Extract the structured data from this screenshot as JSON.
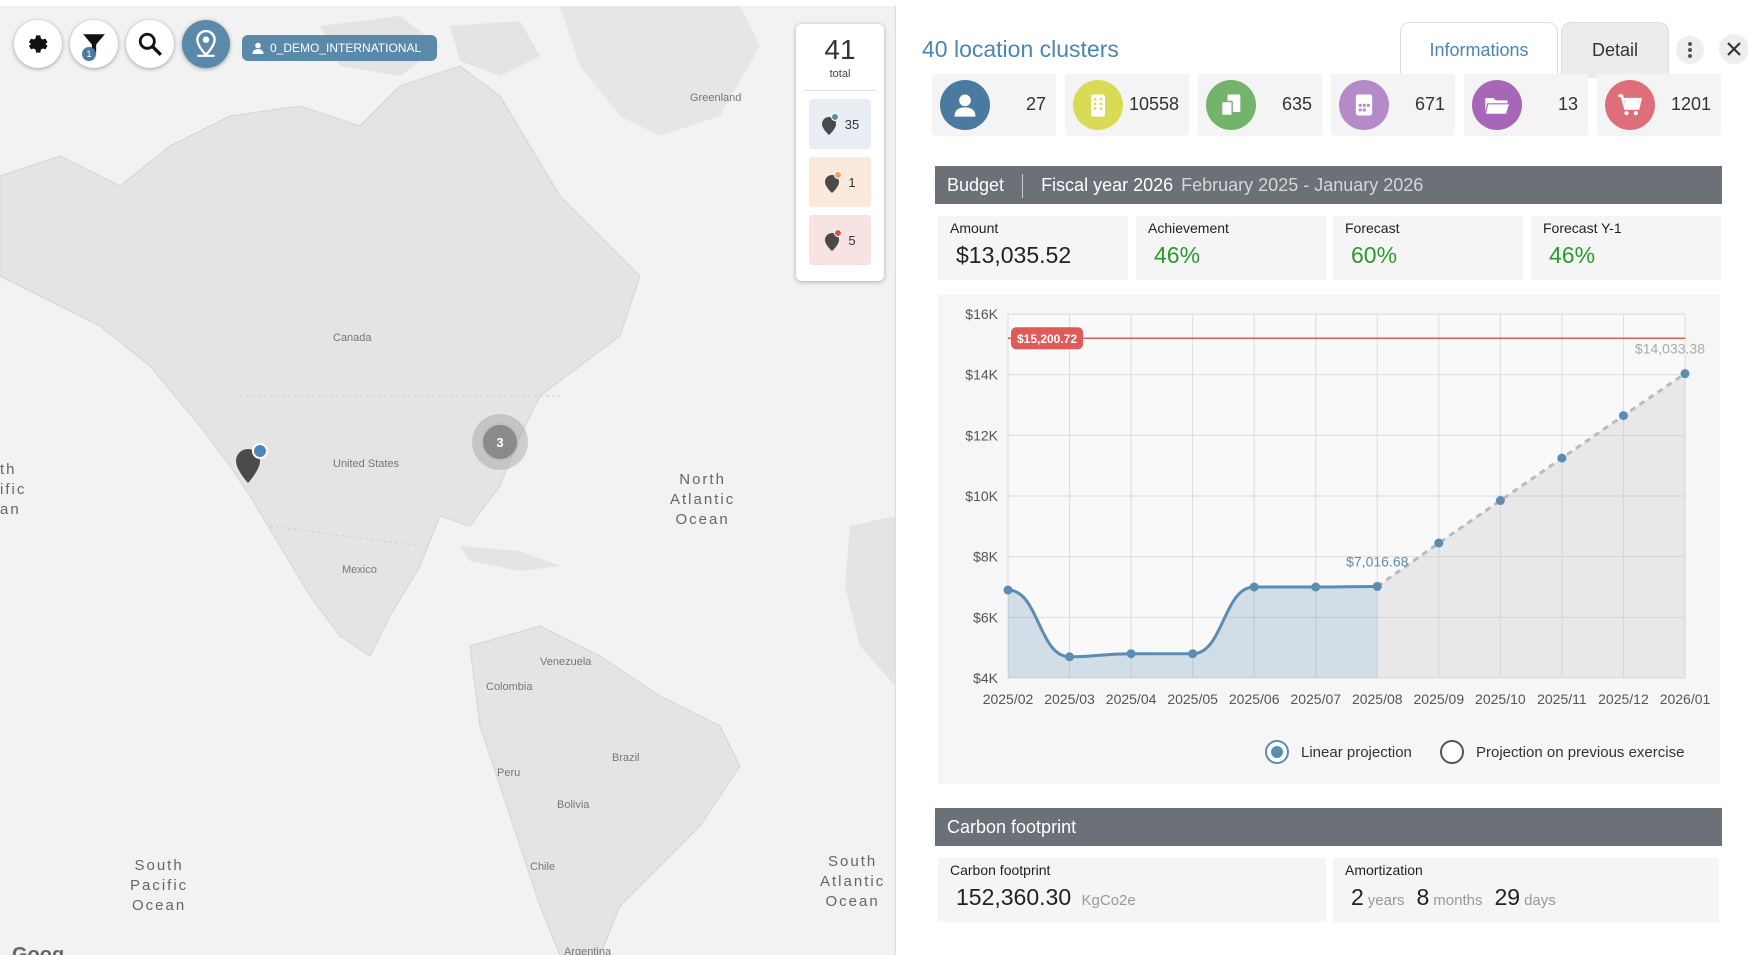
{
  "map": {
    "org_chip": "0_DEMO_INTERNATIONAL",
    "filter_badge": "1",
    "cluster_count": "3",
    "labels": {
      "greenland": "Greenland",
      "canada": "Canada",
      "united_states": "United States",
      "mexico": "Mexico",
      "venezuela": "Venezuela",
      "colombia": "Colombia",
      "brazil": "Brazil",
      "peru": "Peru",
      "bolivia": "Bolivia",
      "chile": "Chile",
      "argentina": "Argentina"
    },
    "oceans": {
      "north_atlantic": [
        "North",
        "Atlantic",
        "Ocean"
      ],
      "south_pacific": [
        "South",
        "Pacific",
        "Ocean"
      ],
      "south_atlantic": [
        "South",
        "Atlantic",
        "Ocean"
      ],
      "pacific_partial": [
        "th",
        "ific",
        "an"
      ]
    },
    "logo": "Goog"
  },
  "counter": {
    "total": "41",
    "total_label": "total",
    "items": [
      {
        "value": "35",
        "color": "#e9eef4",
        "dot": "#5b89aa"
      },
      {
        "value": "1",
        "color": "#fbe9dc",
        "dot": "#f0a060"
      },
      {
        "value": "5",
        "color": "#f8e3e3",
        "dot": "#d9534f"
      }
    ]
  },
  "panel": {
    "title": "40 location clusters",
    "tabs": {
      "info": "Informations",
      "detail": "Detail"
    },
    "stats": [
      {
        "icon": "user-icon",
        "value": "27",
        "color": "#4a7aa0"
      },
      {
        "icon": "building-icon",
        "value": "10558",
        "color": "#d9db55"
      },
      {
        "icon": "devices-icon",
        "value": "635",
        "color": "#74b36b"
      },
      {
        "icon": "calendar-icon",
        "value": "671",
        "color": "#b58ac9"
      },
      {
        "icon": "folder-icon",
        "value": "13",
        "color": "#a866b8"
      },
      {
        "icon": "cart-icon",
        "value": "1201",
        "color": "#de6f7a"
      }
    ],
    "budget": {
      "header_title": "Budget",
      "fiscal_label": "Fiscal year 2026",
      "fiscal_range": "February 2025 - January 2026",
      "kpis": [
        {
          "label": "Amount",
          "value": "$13,035.52",
          "green": false
        },
        {
          "label": "Achievement",
          "value": "46%",
          "green": true
        },
        {
          "label": "Forecast",
          "value": "60%",
          "green": true
        },
        {
          "label": "Forecast Y-1",
          "value": "46%",
          "green": true
        }
      ],
      "radio_linear": "Linear projection",
      "radio_previous": "Projection on previous exercise"
    },
    "carbon": {
      "header_title": "Carbon footprint",
      "footprint_label": "Carbon footprint",
      "footprint_value": "152,360.30",
      "footprint_unit": "KgCo2e",
      "amort_label": "Amortization",
      "years_value": "2",
      "years_unit": "years",
      "months_value": "8",
      "months_unit": "months",
      "days_value": "29",
      "days_unit": "days"
    }
  },
  "chart_data": {
    "type": "line",
    "categories": [
      "2025/02",
      "2025/03",
      "2025/04",
      "2025/05",
      "2025/06",
      "2025/07",
      "2025/08",
      "2025/09",
      "2025/10",
      "2025/11",
      "2025/12",
      "2026/01"
    ],
    "series": [
      {
        "values": [
          6900,
          4700,
          4800,
          4800,
          7000,
          7000,
          7016.68,
          null,
          null,
          null,
          null,
          null
        ],
        "color": "#5b8db3"
      },
      {
        "values": [
          null,
          null,
          null,
          null,
          null,
          null,
          7016.68,
          8450,
          9850,
          11250,
          12650,
          14033.38
        ],
        "color": "#bbbbbb",
        "dashed": true
      }
    ],
    "budget_line": {
      "value": 15200.72,
      "label": "$15,200.72",
      "color": "#e05a5a"
    },
    "data_labels": [
      {
        "label": "$7,016.68",
        "index": 6
      },
      {
        "label": "$14,033.38",
        "index": 11
      }
    ],
    "y_ticks": [
      "$4K",
      "$6K",
      "$8K",
      "$10K",
      "$12K",
      "$14K",
      "$16K"
    ],
    "ylim": [
      4000,
      16000
    ],
    "grid": true
  }
}
